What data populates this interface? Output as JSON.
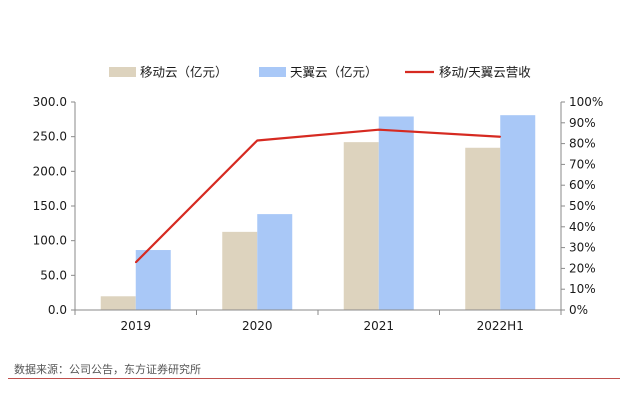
{
  "chart_data": {
    "type": "bar",
    "categories": [
      "2019",
      "2020",
      "2021",
      "2022H1"
    ],
    "series": [
      {
        "name": "移动云（亿元）",
        "type": "bar",
        "axis": "left",
        "color": "#ddd3be",
        "values": [
          19.8,
          112.7,
          242.1,
          234.0
        ]
      },
      {
        "name": "天翼云（亿元）",
        "type": "bar",
        "axis": "left",
        "color": "#a9c8f7",
        "values": [
          86.5,
          138.3,
          279.1,
          281.0
        ]
      },
      {
        "name": "移动/天翼云营收",
        "type": "line",
        "axis": "right",
        "color": "#d62a21",
        "values": [
          0.229,
          0.815,
          0.867,
          0.833
        ]
      }
    ],
    "left_axis": {
      "min": 0,
      "max": 300,
      "step": 50,
      "tick_labels": [
        "0.0",
        "50.0",
        "100.0",
        "150.0",
        "200.0",
        "250.0",
        "300.0"
      ]
    },
    "right_axis": {
      "min": 0,
      "max": 1,
      "step": 0.1,
      "tick_labels": [
        "0%",
        "10%",
        "20%",
        "30%",
        "40%",
        "50%",
        "60%",
        "70%",
        "80%",
        "90%",
        "100%"
      ]
    },
    "legend_position": "top-center",
    "grid": false
  },
  "source": "数据来源：公司公告，东方证券研究所"
}
